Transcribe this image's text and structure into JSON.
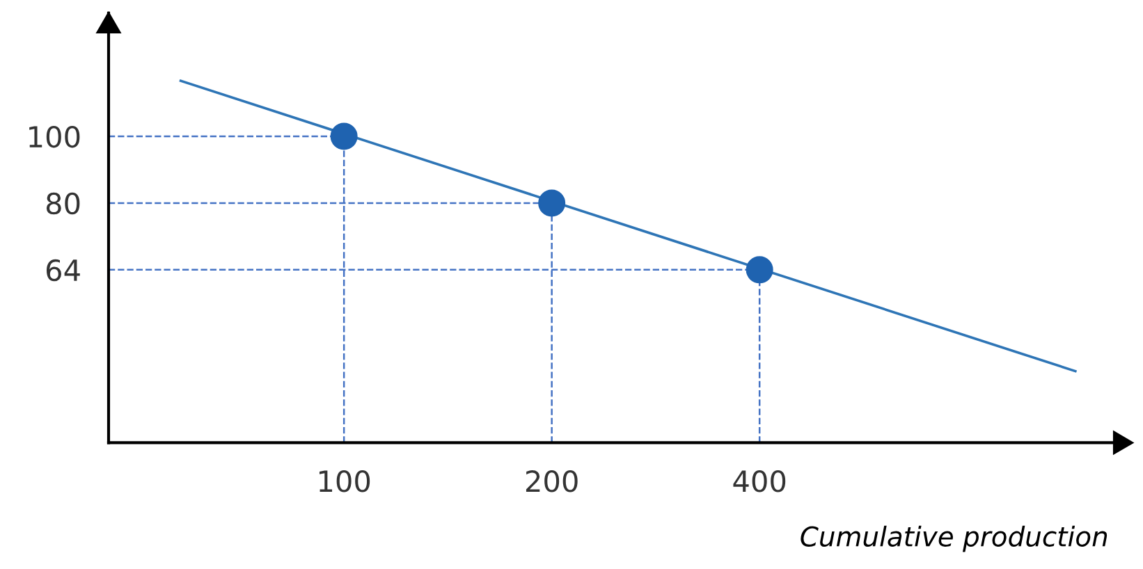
{
  "chart_data": {
    "type": "line",
    "xlabel": "Cumulative production",
    "log": "xy",
    "xlim": [
      45.6,
      1373
    ],
    "ylim": [
      35.9,
      151
    ],
    "xticks": [
      100,
      200,
      400
    ],
    "yticks": [
      100,
      80,
      64
    ],
    "grid": false,
    "series": [
      {
        "color": "#2e75b6",
        "x": [
          58,
          1147
        ],
        "values": [
          120.4,
          45.6
        ],
        "marker": "none",
        "line_style": "solid"
      },
      {
        "type": "scatter",
        "color": "#1f63b0",
        "x": [
          100,
          200,
          400
        ],
        "values": [
          100,
          80,
          64
        ],
        "marker": "circle"
      }
    ],
    "ref_lines": [
      {
        "axis": "y",
        "value": 100,
        "color": "#4472c4",
        "line_style": "dashed"
      },
      {
        "axis": "y",
        "value": 80,
        "color": "#4472c4",
        "line_style": "dashed"
      },
      {
        "axis": "y",
        "value": 64,
        "color": "#4472c4",
        "line_style": "dashed"
      },
      {
        "axis": "x",
        "value": 100,
        "color": "#4472c4",
        "line_style": "dashed"
      },
      {
        "axis": "x",
        "value": 200,
        "color": "#4472c4",
        "line_style": "dashed"
      },
      {
        "axis": "x",
        "value": 400,
        "color": "#4472c4",
        "line_style": "dashed"
      }
    ]
  }
}
